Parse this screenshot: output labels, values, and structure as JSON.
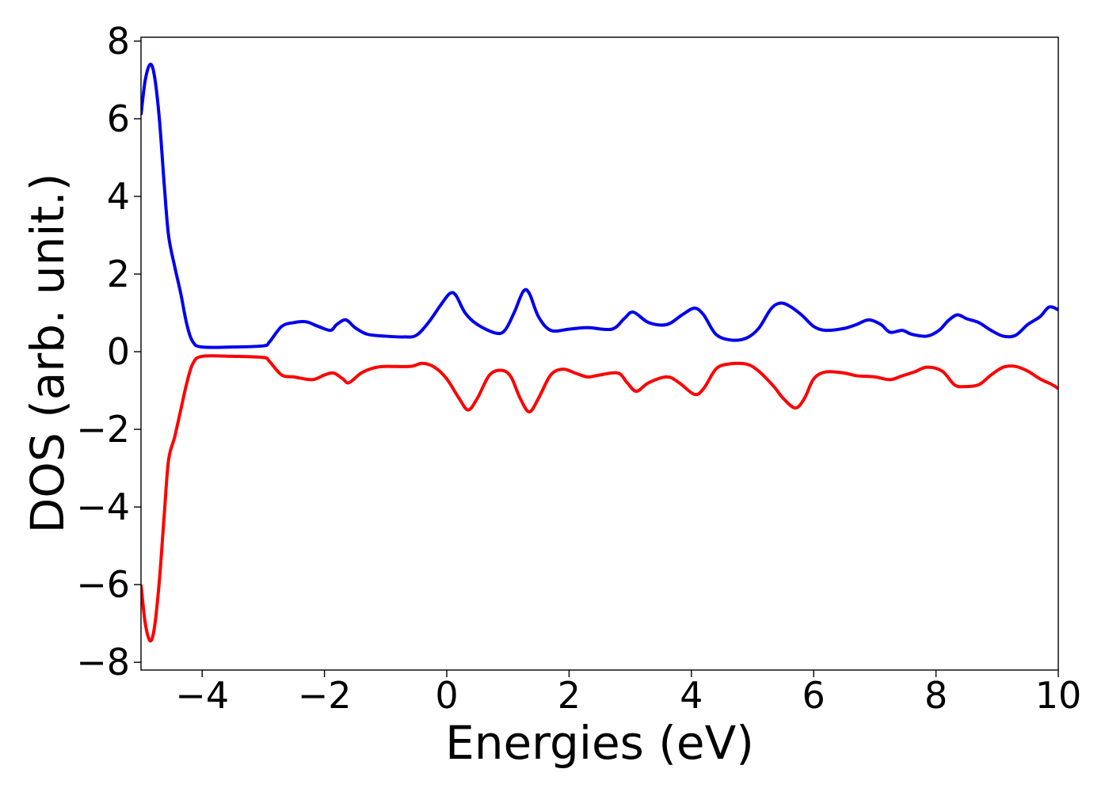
{
  "chart_data": {
    "type": "line",
    "title": "",
    "xlabel": "Energies (eV)",
    "ylabel": "DOS (arb. unit.)",
    "xlim": [
      -5,
      10
    ],
    "ylim": [
      -8.2,
      8.1
    ],
    "xticks": [
      -4,
      -2,
      0,
      2,
      4,
      6,
      8,
      10
    ],
    "xtick_labels": [
      "−4",
      "−2",
      "0",
      "2",
      "4",
      "6",
      "8",
      "10"
    ],
    "yticks": [
      -8,
      -6,
      -4,
      -2,
      0,
      2,
      4,
      6,
      8
    ],
    "ytick_labels": [
      "−8",
      "−6",
      "−4",
      "−2",
      "0",
      "2",
      "4",
      "6",
      "8"
    ],
    "grid": false,
    "series": [
      {
        "color": "#0000ee",
        "points": [
          [
            -5.0,
            6.1
          ],
          [
            -4.93,
            7.0
          ],
          [
            -4.85,
            7.4
          ],
          [
            -4.78,
            7.1
          ],
          [
            -4.7,
            6.0
          ],
          [
            -4.62,
            4.3
          ],
          [
            -4.55,
            3.0
          ],
          [
            -4.45,
            2.2
          ],
          [
            -4.35,
            1.5
          ],
          [
            -4.25,
            0.7
          ],
          [
            -4.15,
            0.25
          ],
          [
            -4.0,
            0.12
          ],
          [
            -3.5,
            0.12
          ],
          [
            -3.0,
            0.15
          ],
          [
            -2.9,
            0.25
          ],
          [
            -2.7,
            0.65
          ],
          [
            -2.5,
            0.75
          ],
          [
            -2.3,
            0.77
          ],
          [
            -2.1,
            0.65
          ],
          [
            -1.9,
            0.55
          ],
          [
            -1.8,
            0.7
          ],
          [
            -1.65,
            0.82
          ],
          [
            -1.5,
            0.62
          ],
          [
            -1.3,
            0.45
          ],
          [
            -1.0,
            0.4
          ],
          [
            -0.7,
            0.38
          ],
          [
            -0.5,
            0.42
          ],
          [
            -0.3,
            0.75
          ],
          [
            -0.1,
            1.2
          ],
          [
            0.05,
            1.5
          ],
          [
            0.15,
            1.45
          ],
          [
            0.3,
            1.0
          ],
          [
            0.5,
            0.7
          ],
          [
            0.8,
            0.48
          ],
          [
            0.95,
            0.55
          ],
          [
            1.1,
            1.0
          ],
          [
            1.25,
            1.55
          ],
          [
            1.35,
            1.5
          ],
          [
            1.5,
            0.9
          ],
          [
            1.7,
            0.55
          ],
          [
            2.0,
            0.58
          ],
          [
            2.3,
            0.62
          ],
          [
            2.7,
            0.58
          ],
          [
            2.9,
            0.85
          ],
          [
            3.05,
            1.02
          ],
          [
            3.3,
            0.75
          ],
          [
            3.6,
            0.7
          ],
          [
            3.85,
            0.95
          ],
          [
            4.05,
            1.12
          ],
          [
            4.2,
            0.95
          ],
          [
            4.4,
            0.45
          ],
          [
            4.65,
            0.3
          ],
          [
            4.9,
            0.35
          ],
          [
            5.1,
            0.6
          ],
          [
            5.3,
            1.1
          ],
          [
            5.45,
            1.25
          ],
          [
            5.6,
            1.18
          ],
          [
            5.8,
            0.95
          ],
          [
            6.0,
            0.65
          ],
          [
            6.2,
            0.55
          ],
          [
            6.5,
            0.6
          ],
          [
            6.7,
            0.7
          ],
          [
            6.9,
            0.82
          ],
          [
            7.1,
            0.7
          ],
          [
            7.25,
            0.5
          ],
          [
            7.45,
            0.55
          ],
          [
            7.6,
            0.45
          ],
          [
            7.85,
            0.4
          ],
          [
            8.05,
            0.55
          ],
          [
            8.2,
            0.8
          ],
          [
            8.35,
            0.95
          ],
          [
            8.5,
            0.85
          ],
          [
            8.7,
            0.75
          ],
          [
            8.9,
            0.55
          ],
          [
            9.1,
            0.4
          ],
          [
            9.3,
            0.42
          ],
          [
            9.5,
            0.7
          ],
          [
            9.7,
            0.9
          ],
          [
            9.85,
            1.15
          ],
          [
            10.0,
            1.08
          ]
        ]
      },
      {
        "color": "#ff0000",
        "points": [
          [
            -5.0,
            -6.0
          ],
          [
            -4.93,
            -7.0
          ],
          [
            -4.85,
            -7.45
          ],
          [
            -4.78,
            -7.1
          ],
          [
            -4.7,
            -5.9
          ],
          [
            -4.62,
            -4.2
          ],
          [
            -4.55,
            -2.8
          ],
          [
            -4.45,
            -2.2
          ],
          [
            -4.35,
            -1.5
          ],
          [
            -4.25,
            -0.8
          ],
          [
            -4.15,
            -0.3
          ],
          [
            -4.0,
            -0.12
          ],
          [
            -3.5,
            -0.12
          ],
          [
            -3.0,
            -0.15
          ],
          [
            -2.9,
            -0.25
          ],
          [
            -2.7,
            -0.6
          ],
          [
            -2.5,
            -0.65
          ],
          [
            -2.2,
            -0.72
          ],
          [
            -2.0,
            -0.6
          ],
          [
            -1.85,
            -0.55
          ],
          [
            -1.7,
            -0.7
          ],
          [
            -1.6,
            -0.8
          ],
          [
            -1.4,
            -0.55
          ],
          [
            -1.2,
            -0.42
          ],
          [
            -1.0,
            -0.38
          ],
          [
            -0.6,
            -0.38
          ],
          [
            -0.4,
            -0.3
          ],
          [
            -0.2,
            -0.4
          ],
          [
            0.0,
            -0.7
          ],
          [
            0.2,
            -1.2
          ],
          [
            0.35,
            -1.5
          ],
          [
            0.5,
            -1.2
          ],
          [
            0.7,
            -0.6
          ],
          [
            0.9,
            -0.48
          ],
          [
            1.05,
            -0.65
          ],
          [
            1.2,
            -1.2
          ],
          [
            1.35,
            -1.55
          ],
          [
            1.5,
            -1.2
          ],
          [
            1.7,
            -0.6
          ],
          [
            1.9,
            -0.45
          ],
          [
            2.1,
            -0.55
          ],
          [
            2.3,
            -0.65
          ],
          [
            2.5,
            -0.6
          ],
          [
            2.8,
            -0.55
          ],
          [
            2.95,
            -0.8
          ],
          [
            3.1,
            -1.02
          ],
          [
            3.3,
            -0.8
          ],
          [
            3.6,
            -0.65
          ],
          [
            3.8,
            -0.8
          ],
          [
            4.05,
            -1.1
          ],
          [
            4.2,
            -0.95
          ],
          [
            4.4,
            -0.45
          ],
          [
            4.6,
            -0.32
          ],
          [
            4.9,
            -0.32
          ],
          [
            5.1,
            -0.5
          ],
          [
            5.35,
            -0.9
          ],
          [
            5.5,
            -1.2
          ],
          [
            5.7,
            -1.45
          ],
          [
            5.85,
            -1.2
          ],
          [
            6.0,
            -0.7
          ],
          [
            6.2,
            -0.52
          ],
          [
            6.5,
            -0.55
          ],
          [
            6.7,
            -0.62
          ],
          [
            7.0,
            -0.65
          ],
          [
            7.25,
            -0.72
          ],
          [
            7.45,
            -0.62
          ],
          [
            7.65,
            -0.52
          ],
          [
            7.85,
            -0.4
          ],
          [
            8.1,
            -0.5
          ],
          [
            8.3,
            -0.85
          ],
          [
            8.45,
            -0.9
          ],
          [
            8.7,
            -0.85
          ],
          [
            8.9,
            -0.6
          ],
          [
            9.1,
            -0.4
          ],
          [
            9.3,
            -0.38
          ],
          [
            9.5,
            -0.5
          ],
          [
            9.7,
            -0.7
          ],
          [
            9.9,
            -0.85
          ],
          [
            10.0,
            -0.95
          ]
        ]
      }
    ]
  }
}
